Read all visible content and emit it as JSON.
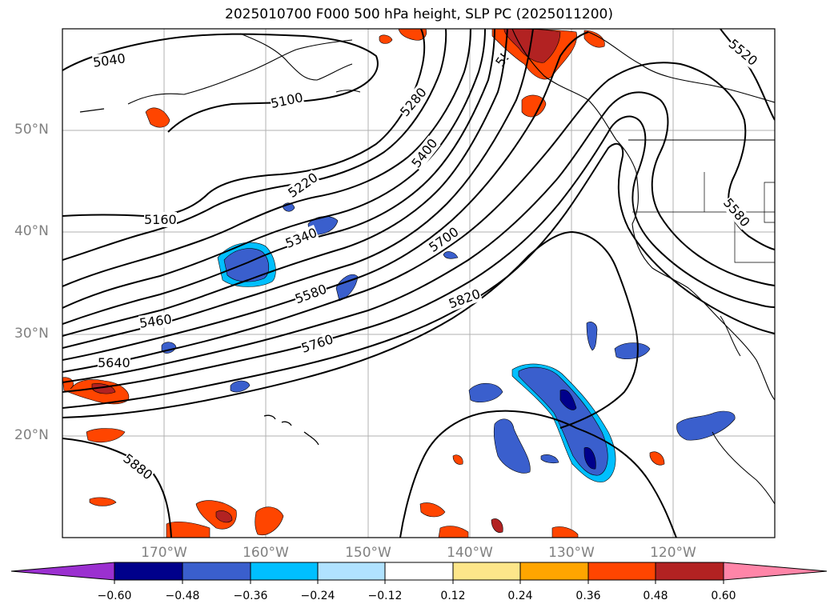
{
  "title": "2025010700 F000 500 hPa height, SLP PC (2025011200)",
  "map": {
    "lat_labels": [
      "50°N",
      "40°N",
      "30°N",
      "20°N"
    ],
    "lon_labels": [
      "170°W",
      "160°W",
      "150°W",
      "140°W",
      "130°W",
      "120°W"
    ],
    "contour_labels": [
      "5040",
      "5100",
      "5160",
      "5220",
      "5280",
      "5340",
      "5400",
      "5460",
      "5520",
      "5580",
      "5640",
      "5700",
      "5760",
      "5820",
      "5880"
    ]
  },
  "colorbar": {
    "ticks": [
      "−0.60",
      "−0.48",
      "−0.36",
      "−0.24",
      "−0.12",
      "0.12",
      "0.24",
      "0.36",
      "0.48",
      "0.60"
    ],
    "colors": [
      "#9b30d0",
      "#00008b",
      "#3a5fcd",
      "#00bfff",
      "#b0e2ff",
      "#ffffff",
      "#fde68a",
      "#ffa500",
      "#ff4500",
      "#b22222",
      "#ff85a8"
    ]
  }
}
